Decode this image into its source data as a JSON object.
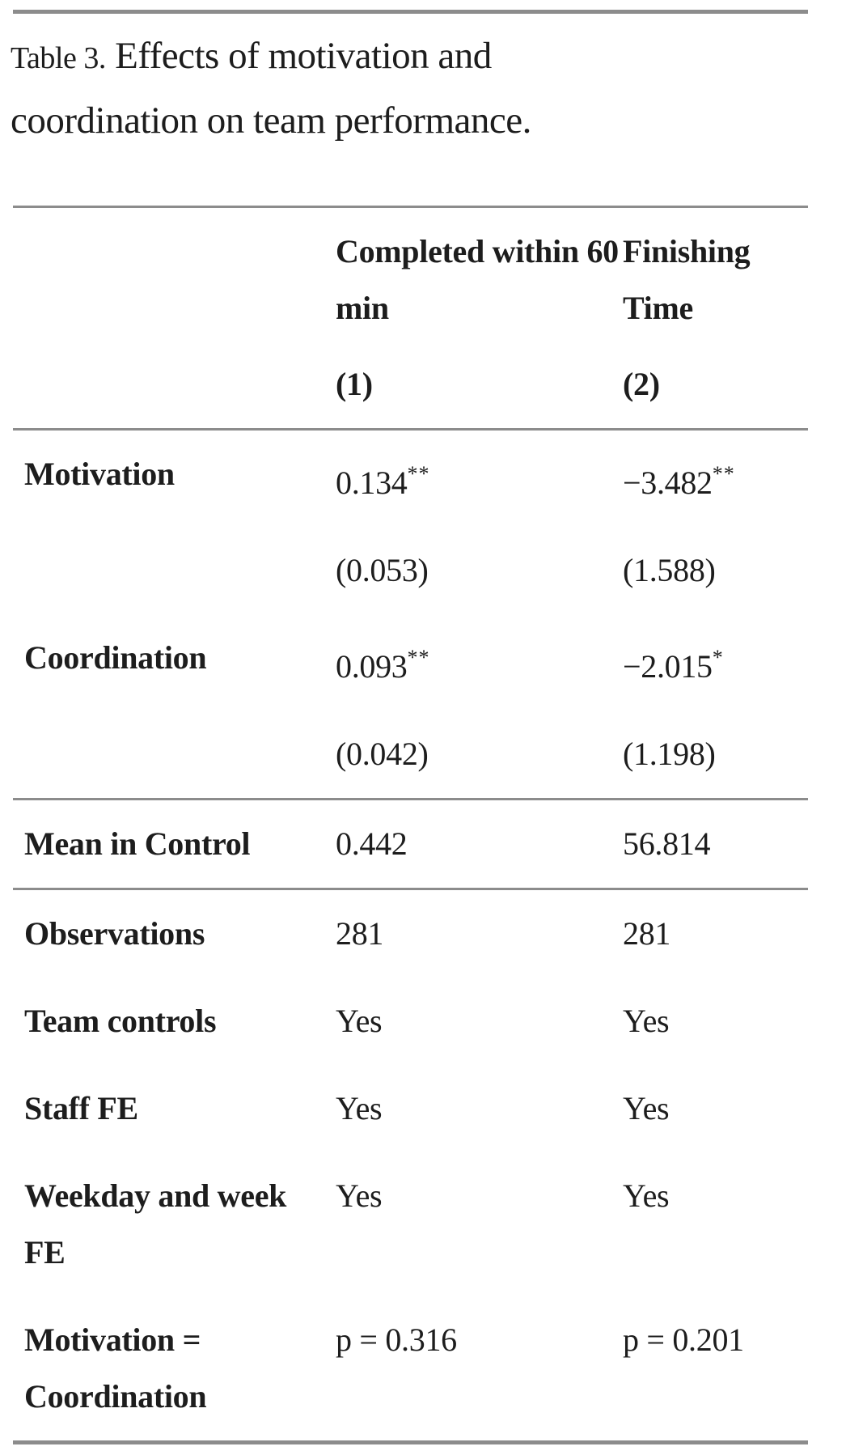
{
  "page": {
    "title_label": "Table 3.",
    "title_text": "Effects of motivation and coordination on team performance."
  },
  "colors": {
    "text": "#1d1d1d",
    "rule_gray": "#8c8c8c",
    "background": "#ffffff"
  },
  "table": {
    "columns": [
      {
        "name": "Completed within 60 min",
        "number": "(1)"
      },
      {
        "name": "Finishing Time",
        "number": "(2)"
      }
    ],
    "rows": [
      {
        "label": "Motivation",
        "v1": "0.134",
        "s1": "**",
        "v2": "−3.482",
        "s2": "**"
      },
      {
        "label": "",
        "v1": "(0.053)",
        "s1": "",
        "v2": "(1.588)",
        "s2": ""
      },
      {
        "label": "Coordination",
        "v1": "0.093",
        "s1": "**",
        "v2": "−2.015",
        "s2": "*"
      },
      {
        "label": "",
        "v1": "(0.042)",
        "s1": "",
        "v2": "(1.198)",
        "s2": ""
      },
      {
        "label": "Mean in Control",
        "v1": "0.442",
        "s1": "",
        "v2": "56.814",
        "s2": ""
      },
      {
        "label": "Observations",
        "v1": "281",
        "s1": "",
        "v2": "281",
        "s2": ""
      },
      {
        "label": "Team controls",
        "v1": "Yes",
        "s1": "",
        "v2": "Yes",
        "s2": ""
      },
      {
        "label": "Staff FE",
        "v1": "Yes",
        "s1": "",
        "v2": "Yes",
        "s2": ""
      },
      {
        "label": "Weekday and week FE",
        "v1": "Yes",
        "s1": "",
        "v2": "Yes",
        "s2": ""
      },
      {
        "label": "Motivation = Coordination",
        "v1": "p = 0.316",
        "s1": "",
        "v2": "p = 0.201",
        "s2": ""
      }
    ]
  }
}
